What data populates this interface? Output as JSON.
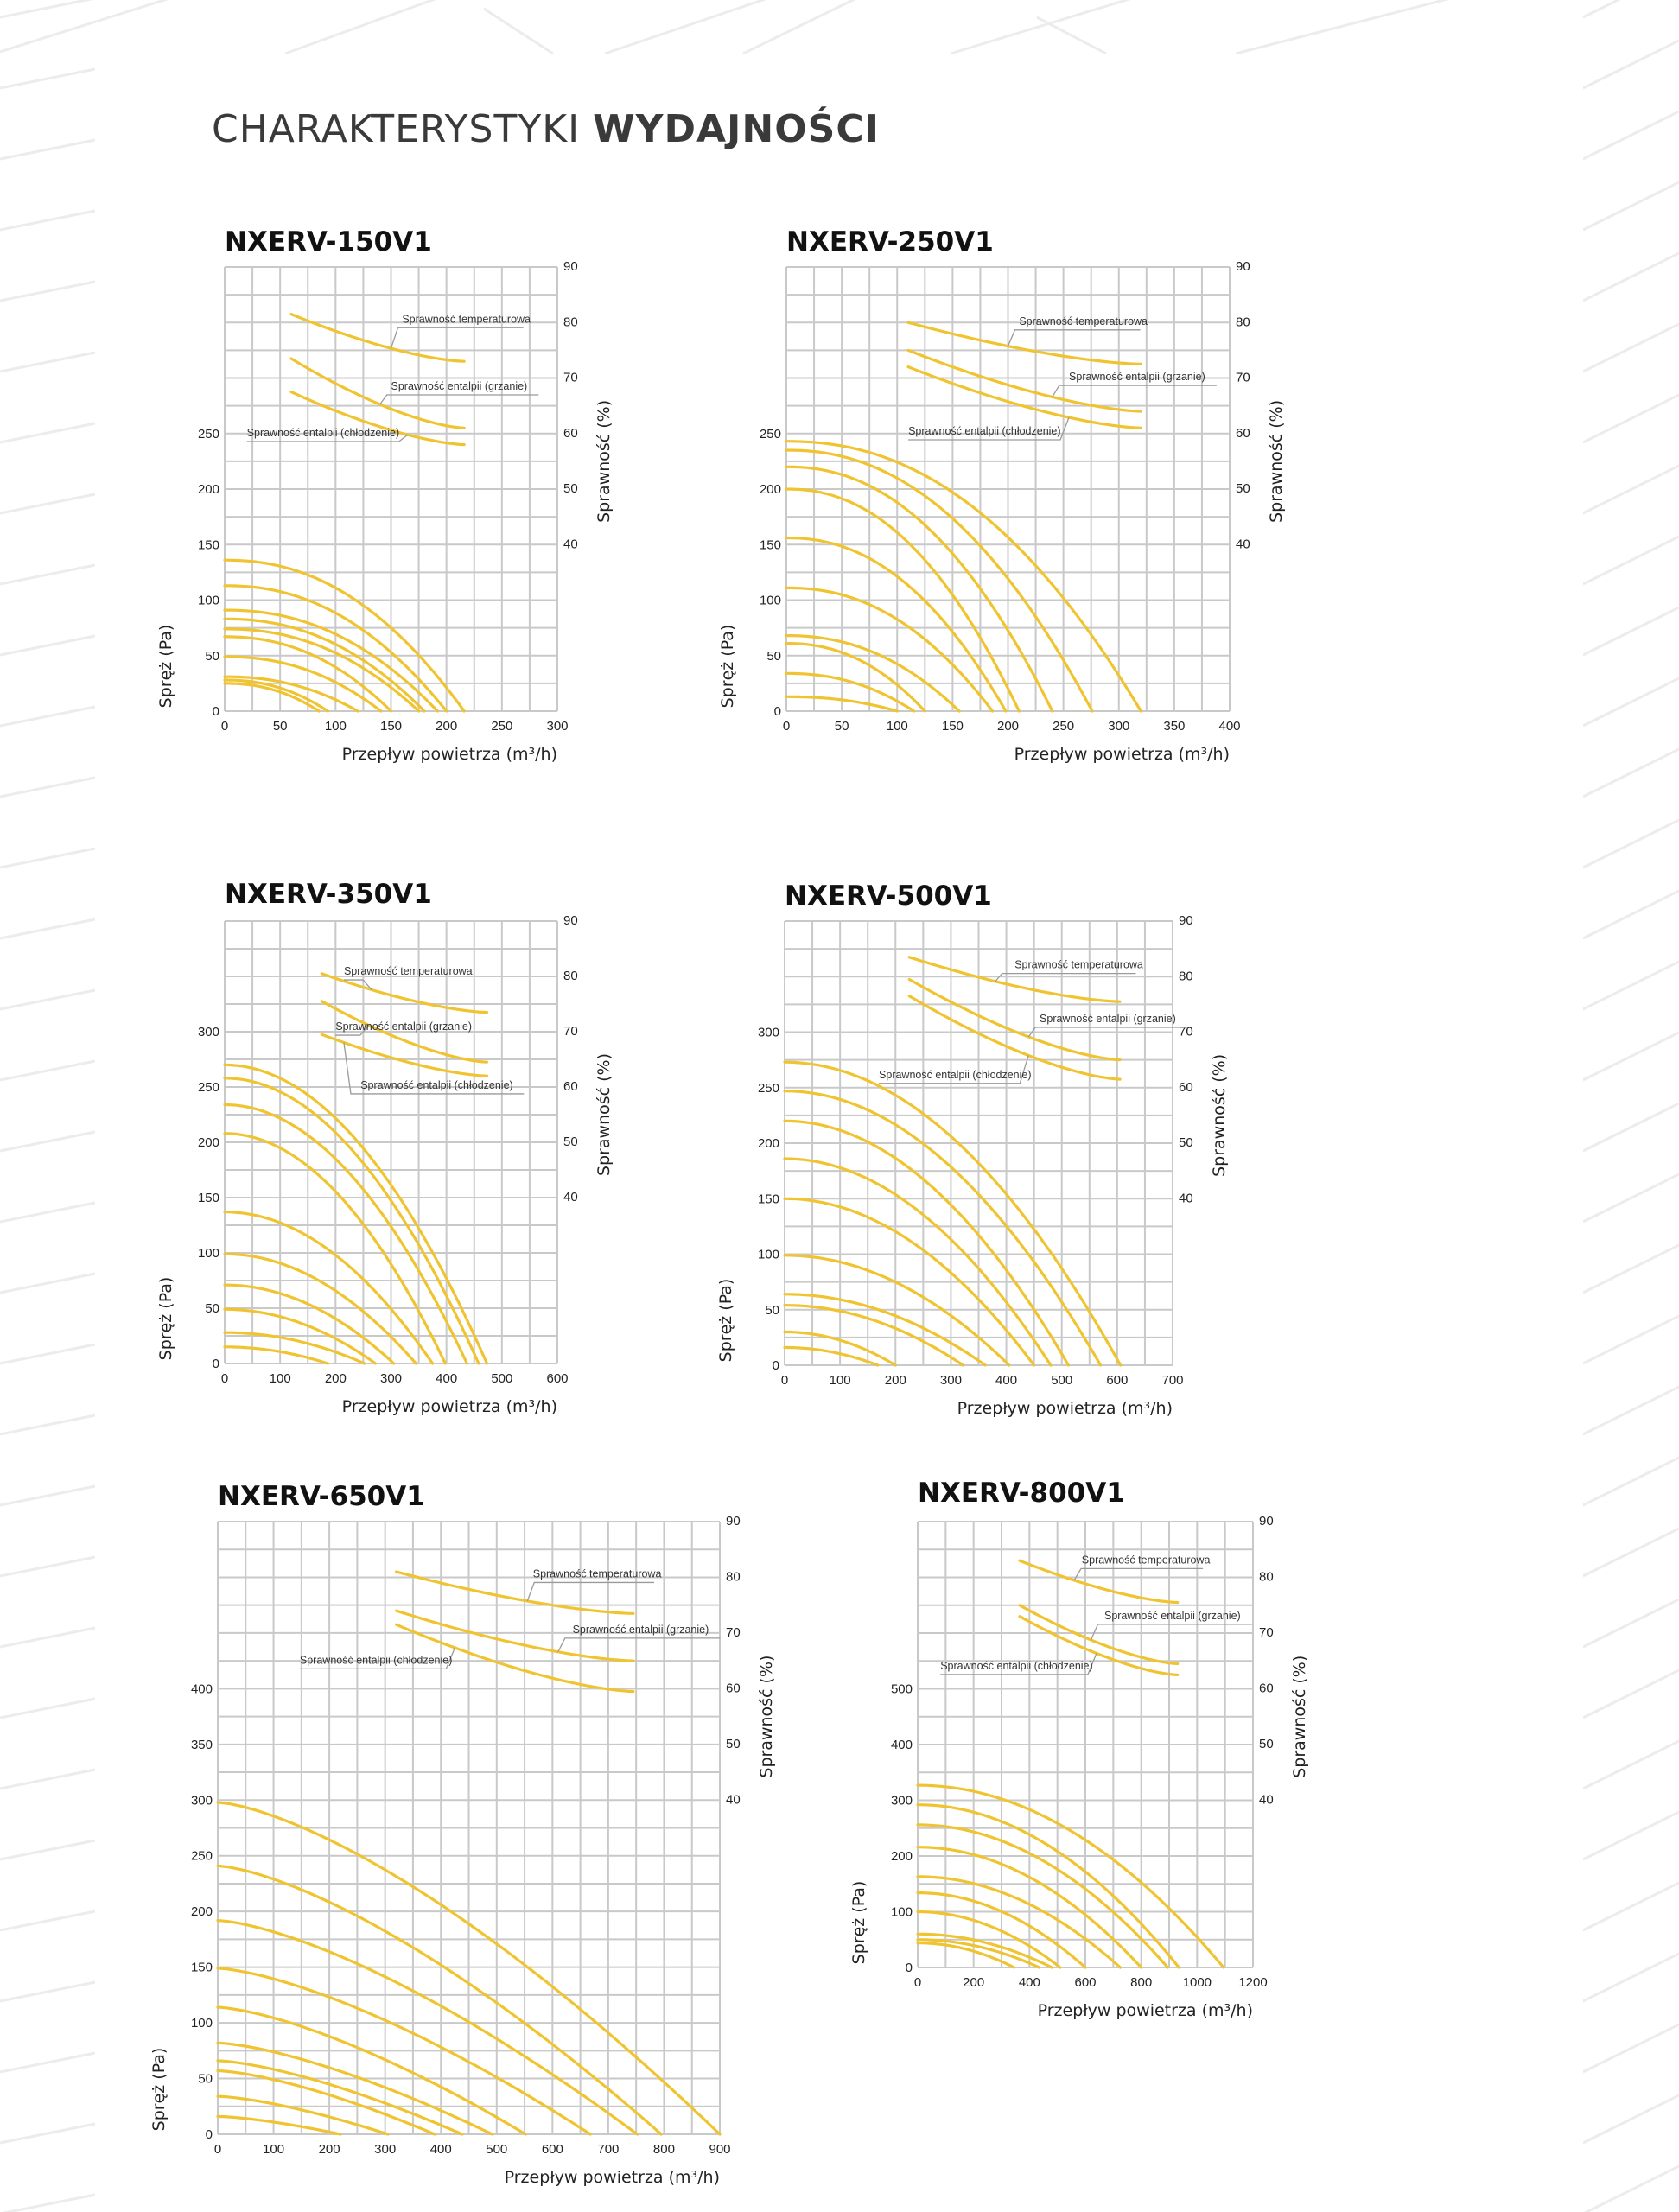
{
  "header": {
    "title_light": "CHARAKTERYSTYKI",
    "title_bold": "WYDAJNOŚCI"
  },
  "colors": {
    "curve": "#f0c430",
    "grid": "#c9c9c9",
    "text": "#222222",
    "title": "#3a3a3a",
    "leader": "#9a9a9a",
    "pattern": "#ececec"
  },
  "chart_data": [
    {
      "type": "line",
      "title": "NXERV-150V1",
      "xlabel": "Przepływ powietrza (m³/h)",
      "ylabel": "Spręż (Pa)",
      "y2label": "Sprawność (%)",
      "xlim": [
        0,
        300
      ],
      "ylim": [
        0,
        400
      ],
      "y2lim": [
        10,
        90
      ],
      "grid": true,
      "xticks": [
        0,
        50,
        100,
        150,
        200,
        250,
        300
      ],
      "yticks": [
        0,
        50,
        100,
        150,
        200,
        250
      ],
      "y2ticks": [
        40,
        50,
        60,
        70,
        80,
        90
      ],
      "pressure_curves": [
        {
          "start_pa": 136,
          "max_flow": 216
        },
        {
          "start_pa": 113,
          "max_flow": 200
        },
        {
          "start_pa": 91,
          "max_flow": 192
        },
        {
          "start_pa": 83,
          "max_flow": 180
        },
        {
          "start_pa": 74,
          "max_flow": 175
        },
        {
          "start_pa": 67,
          "max_flow": 150
        },
        {
          "start_pa": 49,
          "max_flow": 141
        },
        {
          "start_pa": 31,
          "max_flow": 120
        },
        {
          "start_pa": 28,
          "max_flow": 93
        },
        {
          "start_pa": 25,
          "max_flow": 85
        }
      ],
      "efficiency_series": [
        {
          "name": "Sprawność temperaturowa",
          "flow": [
            60,
            216
          ],
          "efficiency": [
            81.5,
            73
          ]
        },
        {
          "name": "Sprawność entalpii (grzanie)",
          "flow": [
            60,
            216
          ],
          "efficiency": [
            73.5,
            61
          ]
        },
        {
          "name": "Sprawność entalpii (chłodzenie)",
          "flow": [
            60,
            216
          ],
          "efficiency": [
            67.5,
            58
          ]
        }
      ]
    },
    {
      "type": "line",
      "title": "NXERV-250V1",
      "xlabel": "Przepływ powietrza (m³/h)",
      "ylabel": "Spręż (Pa)",
      "y2label": "Sprawność (%)",
      "xlim": [
        0,
        400
      ],
      "ylim": [
        0,
        400
      ],
      "y2lim": [
        10,
        90
      ],
      "grid": true,
      "xticks": [
        0,
        50,
        100,
        150,
        200,
        250,
        300,
        350,
        400
      ],
      "yticks": [
        0,
        50,
        100,
        150,
        200,
        250
      ],
      "y2ticks": [
        40,
        50,
        60,
        70,
        80,
        90
      ],
      "pressure_curves": [
        {
          "start_pa": 243,
          "max_flow": 320
        },
        {
          "start_pa": 235,
          "max_flow": 276
        },
        {
          "start_pa": 220,
          "max_flow": 240
        },
        {
          "start_pa": 200,
          "max_flow": 210
        },
        {
          "start_pa": 156,
          "max_flow": 198
        },
        {
          "start_pa": 111,
          "max_flow": 186
        },
        {
          "start_pa": 68,
          "max_flow": 156
        },
        {
          "start_pa": 61,
          "max_flow": 125
        },
        {
          "start_pa": 34,
          "max_flow": 115
        },
        {
          "start_pa": 13,
          "max_flow": 100
        }
      ],
      "efficiency_series": [
        {
          "name": "Sprawność temperaturowa",
          "flow": [
            110,
            320
          ],
          "efficiency": [
            80,
            72.5
          ]
        },
        {
          "name": "Sprawność entalpii (grzanie)",
          "flow": [
            110,
            320
          ],
          "efficiency": [
            75,
            64
          ]
        },
        {
          "name": "Sprawność entalpii (chłodzenie)",
          "flow": [
            110,
            320
          ],
          "efficiency": [
            72,
            61
          ]
        }
      ]
    },
    {
      "type": "line",
      "title": "NXERV-350V1",
      "xlabel": "Przepływ powietrza (m³/h)",
      "ylabel": "Spręż (Pa)",
      "y2label": "Sprawność (%)",
      "xlim": [
        0,
        600
      ],
      "ylim": [
        0,
        400
      ],
      "y2lim": [
        10,
        90
      ],
      "grid": true,
      "xticks": [
        0,
        100,
        200,
        300,
        400,
        500,
        600
      ],
      "yticks": [
        0,
        50,
        100,
        150,
        200,
        250,
        300
      ],
      "y2ticks": [
        40,
        50,
        60,
        70,
        80,
        90
      ],
      "pressure_curves": [
        {
          "start_pa": 270,
          "max_flow": 473
        },
        {
          "start_pa": 258,
          "max_flow": 458
        },
        {
          "start_pa": 234,
          "max_flow": 437
        },
        {
          "start_pa": 208,
          "max_flow": 398
        },
        {
          "start_pa": 137,
          "max_flow": 375
        },
        {
          "start_pa": 99,
          "max_flow": 345
        },
        {
          "start_pa": 71,
          "max_flow": 305
        },
        {
          "start_pa": 49,
          "max_flow": 272
        },
        {
          "start_pa": 28,
          "max_flow": 252
        },
        {
          "start_pa": 15,
          "max_flow": 186
        }
      ],
      "efficiency_series": [
        {
          "name": "Sprawność temperaturowa",
          "flow": [
            175,
            473
          ],
          "efficiency": [
            80.5,
            73.5
          ]
        },
        {
          "name": "Sprawność entalpii (grzanie)",
          "flow": [
            175,
            473
          ],
          "efficiency": [
            75.5,
            64.5
          ]
        },
        {
          "name": "Sprawność entalpii (chłodzenie)",
          "flow": [
            175,
            473
          ],
          "efficiency": [
            69.5,
            62
          ]
        }
      ]
    },
    {
      "type": "line",
      "title": "NXERV-500V1",
      "xlabel": "Przepływ powietrza (m³/h)",
      "ylabel": "Spręż (Pa)",
      "y2label": "Sprawność (%)",
      "xlim": [
        0,
        700
      ],
      "ylim": [
        0,
        400
      ],
      "y2lim": [
        10,
        90
      ],
      "grid": true,
      "xticks": [
        0,
        100,
        200,
        300,
        400,
        500,
        600,
        700
      ],
      "yticks": [
        0,
        50,
        100,
        150,
        200,
        250,
        300
      ],
      "y2ticks": [
        40,
        50,
        60,
        70,
        80,
        90
      ],
      "pressure_curves": [
        {
          "start_pa": 273,
          "max_flow": 606
        },
        {
          "start_pa": 247,
          "max_flow": 570
        },
        {
          "start_pa": 220,
          "max_flow": 512
        },
        {
          "start_pa": 186,
          "max_flow": 480
        },
        {
          "start_pa": 150,
          "max_flow": 450
        },
        {
          "start_pa": 99,
          "max_flow": 405
        },
        {
          "start_pa": 64,
          "max_flow": 362
        },
        {
          "start_pa": 54,
          "max_flow": 322
        },
        {
          "start_pa": 30,
          "max_flow": 200
        },
        {
          "start_pa": 16,
          "max_flow": 168
        }
      ],
      "efficiency_series": [
        {
          "name": "Sprawność temperaturowa",
          "flow": [
            225,
            605
          ],
          "efficiency": [
            83.5,
            75.5
          ]
        },
        {
          "name": "Sprawność entalpii (grzanie)",
          "flow": [
            225,
            605
          ],
          "efficiency": [
            79.5,
            65
          ]
        },
        {
          "name": "Sprawność entalpii (chłodzenie)",
          "flow": [
            225,
            605
          ],
          "efficiency": [
            76.5,
            61.5
          ]
        }
      ]
    },
    {
      "type": "line",
      "title": "NXERV-650V1",
      "xlabel": "Przepływ powietrza (m³/h)",
      "ylabel": "Spręż (Pa)",
      "y2label": "Sprawność (%)",
      "xlim": [
        0,
        900
      ],
      "ylim": [
        0,
        550
      ],
      "y2lim": [
        -20,
        90
      ],
      "grid": true,
      "xticks": [
        0,
        100,
        200,
        300,
        400,
        500,
        600,
        700,
        800,
        900
      ],
      "yticks": [
        0,
        50,
        100,
        150,
        200,
        250,
        300,
        350,
        400
      ],
      "y2ticks": [
        40,
        50,
        60,
        70,
        80,
        90
      ],
      "pressure_curves": [
        {
          "start_pa": 298,
          "max_flow": 900
        },
        {
          "start_pa": 241,
          "max_flow": 795
        },
        {
          "start_pa": 192,
          "max_flow": 752
        },
        {
          "start_pa": 149,
          "max_flow": 668
        },
        {
          "start_pa": 114,
          "max_flow": 552
        },
        {
          "start_pa": 82,
          "max_flow": 492
        },
        {
          "start_pa": 66,
          "max_flow": 438
        },
        {
          "start_pa": 57,
          "max_flow": 389
        },
        {
          "start_pa": 34,
          "max_flow": 305
        },
        {
          "start_pa": 16,
          "max_flow": 220
        }
      ],
      "efficiency_series": [
        {
          "name": "Sprawność temperaturowa",
          "flow": [
            320,
            745
          ],
          "efficiency": [
            81,
            73.5
          ]
        },
        {
          "name": "Sprawność entalpii (grzanie)",
          "flow": [
            320,
            745
          ],
          "efficiency": [
            74,
            65
          ]
        },
        {
          "name": "Sprawność entalpii (chłodzenie)",
          "flow": [
            320,
            745
          ],
          "efficiency": [
            71.5,
            59.5
          ]
        }
      ]
    },
    {
      "type": "line",
      "title": "NXERV-800V1",
      "xlabel": "Przepływ powietrza (m³/h)",
      "ylabel": "Spręż (Pa)",
      "y2label": "Sprawność (%)",
      "xlim": [
        0,
        1200
      ],
      "ylim": [
        0,
        800
      ],
      "y2lim": [
        10,
        90
      ],
      "grid": true,
      "xticks": [
        0,
        200,
        400,
        600,
        800,
        1000,
        1200
      ],
      "yticks": [
        0,
        100,
        200,
        300,
        400,
        500
      ],
      "y2ticks": [
        40,
        50,
        60,
        70,
        80,
        90
      ],
      "pressure_curves": [
        {
          "start_pa": 327,
          "max_flow": 1095
        },
        {
          "start_pa": 292,
          "max_flow": 935
        },
        {
          "start_pa": 256,
          "max_flow": 895
        },
        {
          "start_pa": 216,
          "max_flow": 800
        },
        {
          "start_pa": 163,
          "max_flow": 725
        },
        {
          "start_pa": 134,
          "max_flow": 600
        },
        {
          "start_pa": 100,
          "max_flow": 510
        },
        {
          "start_pa": 60,
          "max_flow": 480
        },
        {
          "start_pa": 50,
          "max_flow": 435
        },
        {
          "start_pa": 44,
          "max_flow": 345
        }
      ],
      "efficiency_series": [
        {
          "name": "Sprawność temperaturowa",
          "flow": [
            365,
            930
          ],
          "efficiency": [
            83,
            75.5
          ]
        },
        {
          "name": "Sprawność entalpii (grzanie)",
          "flow": [
            365,
            930
          ],
          "efficiency": [
            75,
            64.5
          ]
        },
        {
          "name": "Sprawność entalpii (chłodzenie)",
          "flow": [
            365,
            930
          ],
          "efficiency": [
            73,
            62.5
          ]
        }
      ]
    }
  ]
}
